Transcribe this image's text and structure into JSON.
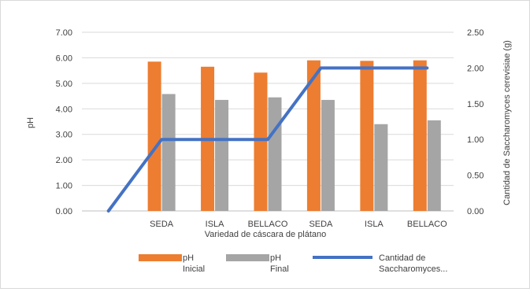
{
  "chart_data": {
    "type": "bar",
    "categories": [
      "",
      "SEDA",
      "ISLA",
      "BELLACO",
      "SEDA",
      "ISLA",
      "BELLACO"
    ],
    "series": [
      {
        "name": "pH Inicial",
        "legend_lines": [
          "pH",
          "Inicial"
        ],
        "axis": "left",
        "type": "bar",
        "color": "#ED7D31",
        "values": [
          null,
          5.85,
          5.65,
          5.42,
          5.9,
          5.88,
          5.9
        ]
      },
      {
        "name": "pH Final",
        "legend_lines": [
          "pH",
          "Final"
        ],
        "axis": "left",
        "type": "bar",
        "color": "#A5A5A5",
        "values": [
          null,
          4.58,
          4.35,
          4.45,
          4.35,
          3.4,
          3.55
        ]
      },
      {
        "name": "Cantidad de Saccharomyces...",
        "legend_lines": [
          "Cantidad de",
          "Saccharomyces..."
        ],
        "axis": "right",
        "type": "line",
        "color": "#4472C4",
        "values": [
          0.0,
          1.0,
          1.0,
          1.0,
          2.0,
          2.0,
          2.0
        ]
      }
    ],
    "xlabel": "Variedad de cáscara de plátano",
    "ylabel": "pH",
    "y2label": "Cantidad de Saccharomyces cerevisiae (g)",
    "ylim": [
      0,
      7
    ],
    "y2lim": [
      0,
      2.5
    ],
    "yticks": [
      "0.00",
      "1.00",
      "2.00",
      "3.00",
      "4.00",
      "5.00",
      "6.00",
      "7.00"
    ],
    "y2ticks": [
      "0.00",
      "0.50",
      "1.00",
      "1.50",
      "2.00",
      "2.50"
    ],
    "grid": true,
    "legend_position": "bottom"
  }
}
